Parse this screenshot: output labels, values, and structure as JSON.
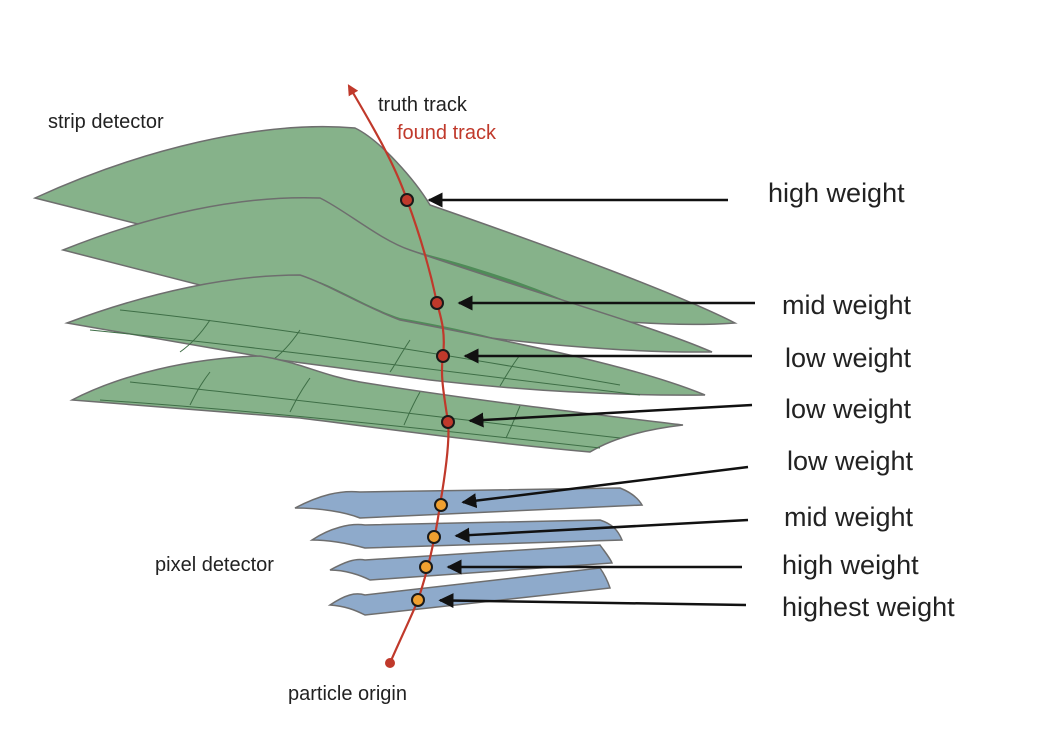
{
  "labels": {
    "strip_detector": "strip detector",
    "pixel_detector": "pixel detector",
    "truth_track": "truth track",
    "found_track": "found track",
    "particle_origin": "particle origin"
  },
  "hits": [
    {
      "detector": "strip",
      "weight": "high weight"
    },
    {
      "detector": "strip",
      "weight": "mid weight"
    },
    {
      "detector": "strip",
      "weight": "low weight"
    },
    {
      "detector": "strip",
      "weight": "low weight"
    },
    {
      "detector": "pixel",
      "weight": "low weight"
    },
    {
      "detector": "pixel",
      "weight": "mid weight"
    },
    {
      "detector": "pixel",
      "weight": "high weight"
    },
    {
      "detector": "pixel",
      "weight": "highest weight"
    }
  ],
  "colors": {
    "strip_layer": "#86b28a",
    "strip_layer_dark": "#4f8c58",
    "pixel_layer": "#8eaacb",
    "layer_edge": "#6e6e6e",
    "track": "#c0392b",
    "strip_hit": "#c0392b",
    "pixel_hit": "#f0a030",
    "arrow": "#111111",
    "found_track_text": "#c0392b"
  }
}
